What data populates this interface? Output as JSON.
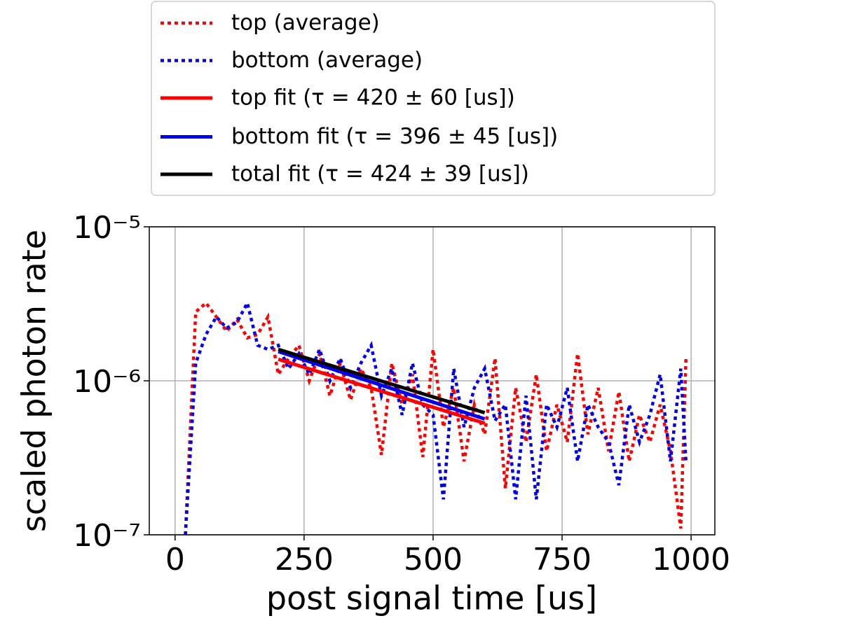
{
  "chart_data": {
    "type": "line",
    "xlabel": "post signal time [us]",
    "ylabel": "scaled photon rate",
    "xlim": [
      -50,
      1046
    ],
    "ylim": [
      1e-07,
      1e-05
    ],
    "log_y": true,
    "grid": true,
    "legend": "above",
    "xticks": [
      0,
      250,
      500,
      750,
      1000
    ],
    "yticks": [
      {
        "value": 1e-07,
        "label": "10⁻⁷"
      },
      {
        "value": 1e-06,
        "label": "10⁻⁶"
      },
      {
        "value": 1e-05,
        "label": "10⁻⁵"
      }
    ],
    "x": [
      20,
      40,
      60,
      80,
      100,
      120,
      140,
      160,
      180,
      200,
      220,
      240,
      260,
      280,
      300,
      320,
      340,
      360,
      380,
      400,
      420,
      440,
      460,
      480,
      500,
      520,
      540,
      560,
      580,
      600,
      620,
      640,
      660,
      680,
      700,
      720,
      740,
      760,
      780,
      800,
      820,
      840,
      860,
      880,
      900,
      920,
      940,
      960,
      980,
      990
    ],
    "series": [
      {
        "name": "top (average)",
        "color": "#ff0000",
        "style": "dotted",
        "values": [
          1e-07,
          2.8e-06,
          3.2e-06,
          2.6e-06,
          2.1e-06,
          2.5e-06,
          1.9e-06,
          2e-06,
          2.6e-06,
          1.1e-06,
          1.4e-06,
          1.7e-06,
          1e-06,
          1.5e-06,
          8e-07,
          1.3e-06,
          7.5e-07,
          1.2e-06,
          9e-07,
          3.3e-07,
          1.3e-06,
          7e-07,
          1.1e-06,
          3.2e-07,
          1.6e-06,
          5e-07,
          9e-07,
          3e-07,
          7e-07,
          4.5e-07,
          1.4e-06,
          2e-07,
          9e-07,
          4e-07,
          1.1e-06,
          3.5e-07,
          7e-07,
          4e-07,
          1.5e-06,
          4.5e-07,
          9e-07,
          3.5e-07,
          8.5e-07,
          3e-07,
          6e-07,
          4e-07,
          7e-07,
          3.5e-07,
          1.1e-07,
          1.4e-06
        ]
      },
      {
        "name": "bottom (average)",
        "color": "#0000ee",
        "style": "dotted",
        "values": [
          1e-07,
          1.3e-06,
          2e-06,
          2.6e-06,
          2.2e-06,
          2.4e-06,
          3.2e-06,
          1.7e-06,
          1.6e-06,
          1.7e-06,
          1.2e-06,
          1.5e-06,
          1.1e-06,
          1.6e-06,
          1e-06,
          1.4e-06,
          9e-07,
          1.3e-06,
          1.7e-06,
          8e-07,
          1.2e-06,
          6e-07,
          1.3e-06,
          7e-07,
          6e-07,
          1.7e-07,
          1.2e-06,
          5e-07,
          9e-07,
          1.2e-06,
          5.5e-07,
          7e-07,
          1.7e-07,
          8e-07,
          1.7e-07,
          7e-07,
          5e-07,
          9e-07,
          3e-07,
          7e-07,
          5e-07,
          4e-07,
          2.1e-07,
          7e-07,
          4e-07,
          6e-07,
          1.1e-06,
          3e-07,
          1.2e-06,
          3e-07
        ]
      },
      {
        "name": "top fit (τ = 420 ± 60 [us])",
        "color": "#ff0000",
        "style": "solid",
        "x": [
          200,
          600
        ],
        "values": [
          1.38e-06,
          5.3e-07
        ]
      },
      {
        "name": "bottom fit (τ = 396 ± 45 [us])",
        "color": "#0000ee",
        "style": "solid",
        "x": [
          200,
          600
        ],
        "values": [
          1.55e-06,
          5.65e-07
        ]
      },
      {
        "name": "total fit (τ = 424 ± 39 [us])",
        "color": "#000000",
        "style": "solid",
        "x": [
          200,
          600
        ],
        "values": [
          1.6e-06,
          6.2e-07
        ]
      }
    ]
  }
}
